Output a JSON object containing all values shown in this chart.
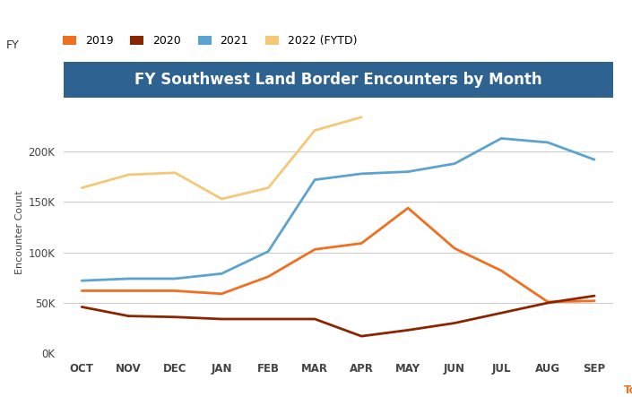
{
  "title": "FY Southwest Land Border Encounters by Month",
  "ylabel": "Encounter Count",
  "months": [
    "OCT",
    "NOV",
    "DEC",
    "JAN",
    "FEB",
    "MAR",
    "APR",
    "MAY",
    "JUN",
    "JUL",
    "AUG",
    "SEP"
  ],
  "series": {
    "2019": {
      "values": [
        62000,
        62000,
        62000,
        59000,
        76000,
        103000,
        109000,
        144000,
        104000,
        82000,
        51000,
        52000
      ],
      "color": "#f07020",
      "linewidth": 2.0
    },
    "2020": {
      "values": [
        46000,
        37000,
        36000,
        34000,
        34000,
        34000,
        17000,
        23000,
        30000,
        40000,
        50000,
        57000
      ],
      "color": "#8b2500",
      "linewidth": 2.0
    },
    "2021": {
      "values": [
        72000,
        74000,
        74000,
        79000,
        101000,
        172000,
        178000,
        180000,
        188000,
        213000,
        209000,
        192000
      ],
      "color": "#5ba3d0",
      "linewidth": 2.0
    },
    "2022 (FYTD)": {
      "values": [
        164000,
        177000,
        179000,
        153000,
        164000,
        221000,
        234000,
        null,
        null,
        null,
        null,
        null
      ],
      "color": "#f5c878",
      "linewidth": 2.0
    }
  },
  "legend_label": "FY",
  "title_bg_color": "#2e6291",
  "title_text_color": "#ffffff",
  "ylim": [
    0,
    240000
  ],
  "ytick_values": [
    0,
    50000,
    100000,
    150000,
    200000
  ],
  "bg_color": "#ffffff",
  "plot_bg_color": "#ffffff",
  "grid_color": "#cccccc",
  "title_fontsize": 12,
  "axis_label_fontsize": 8,
  "tick_fontsize": 8.5,
  "legend_fontsize": 9,
  "total_color": "#f07020"
}
